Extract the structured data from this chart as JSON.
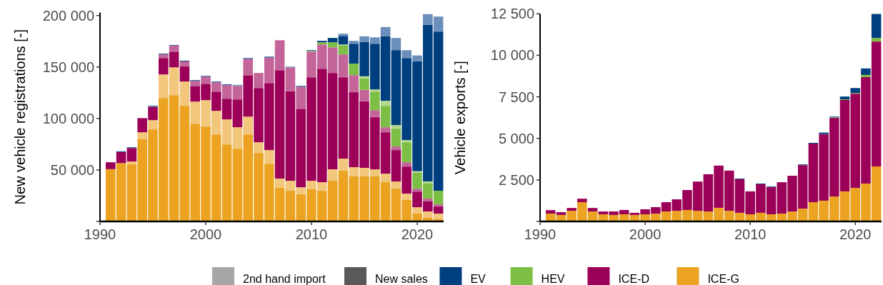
{
  "chart_data": [
    {
      "type": "bar",
      "stacked": true,
      "ylabel": "New vehicle registrations [-]",
      "legend": "bottom",
      "annotations": [
        "2nd hand import",
        "New sales"
      ],
      "x": [
        1991,
        1992,
        1993,
        1994,
        1995,
        1996,
        1997,
        1998,
        1999,
        2000,
        2001,
        2002,
        2003,
        2004,
        2005,
        2006,
        2007,
        2008,
        2009,
        2010,
        2011,
        2012,
        2013,
        2014,
        2015,
        2016,
        2017,
        2018,
        2019,
        2020,
        2021,
        2022
      ],
      "xlim": [
        1990,
        2022.5
      ],
      "xticks": [
        1990,
        2000,
        2010,
        2020
      ],
      "ylim": [
        0,
        203000
      ],
      "yticks": [
        {
          "value": 0,
          "label": null
        },
        {
          "value": 50000,
          "label": "50 000"
        },
        {
          "value": 100000,
          "label": "100 000"
        },
        {
          "value": 150000,
          "label": "150 000"
        },
        {
          "value": 200000,
          "label": "200 000"
        }
      ],
      "series": [
        {
          "name": "ICE-G",
          "color": "#eba321",
          "values": [
            50800,
            56600,
            55400,
            80200,
            89400,
            119900,
            122700,
            112300,
            94900,
            92200,
            84500,
            74800,
            70700,
            84500,
            66500,
            56100,
            32600,
            29800,
            26300,
            31200,
            29800,
            39500,
            49200,
            43700,
            43700,
            43700,
            38100,
            31900,
            20800,
            7600,
            3500,
            2100
          ]
        },
        {
          "color": "#f2c77c",
          "values": [
            0,
            0,
            2800,
            6400,
            9000,
            22900,
            27000,
            23600,
            21500,
            25600,
            22900,
            24300,
            20800,
            17300,
            10400,
            13200,
            9000,
            9700,
            6900,
            8300,
            8300,
            11100,
            11800,
            9000,
            8300,
            6900,
            8300,
            6900,
            6200,
            6200,
            6200,
            5500
          ]
        },
        {
          "name": "ICE-D",
          "color": "#9c0058",
          "values": [
            6700,
            10800,
            13100,
            13300,
            12700,
            15900,
            15200,
            14600,
            15200,
            15900,
            18700,
            20100,
            27000,
            40200,
            52700,
            65100,
            105300,
            86900,
            76200,
            100500,
            110200,
            93600,
            79000,
            72800,
            64700,
            50600,
            40200,
            30500,
            26300,
            15200,
            9700,
            6900
          ]
        },
        {
          "color": "#c4659a",
          "values": [
            0,
            0,
            0,
            700,
            500,
            3500,
            6000,
            4900,
            4900,
            6900,
            9000,
            13200,
            13200,
            15900,
            14600,
            24900,
            29100,
            23100,
            21500,
            24900,
            23600,
            24900,
            22200,
            16600,
            11100,
            6900,
            4900,
            3500,
            4200,
            2800,
            2800,
            2100
          ]
        },
        {
          "name": "HEV",
          "color": "#7dbf45",
          "values": [
            0,
            0,
            0,
            0,
            0,
            0,
            0,
            0,
            0,
            0,
            0,
            0,
            0,
            0,
            0,
            0,
            0,
            0,
            0,
            700,
            2100,
            4900,
            9000,
            11100,
            11100,
            18000,
            20800,
            17300,
            19400,
            15700,
            14600,
            13200
          ]
        },
        {
          "color": "#b3d98f",
          "values": [
            0,
            0,
            0,
            0,
            0,
            0,
            0,
            0,
            0,
            0,
            0,
            0,
            0,
            0,
            0,
            0,
            0,
            0,
            0,
            0,
            0,
            0,
            700,
            0,
            2100,
            2100,
            4900,
            3500,
            2100,
            1400,
            2100,
            0
          ]
        },
        {
          "name": "EV",
          "color": "#003f7f",
          "values": [
            0,
            700,
            700,
            0,
            700,
            700,
            500,
            700,
            700,
            700,
            700,
            700,
            0,
            700,
            0,
            700,
            0,
            0,
            700,
            700,
            1400,
            4200,
            8300,
            19400,
            33300,
            44400,
            62600,
            72800,
            79700,
            106800,
            152000,
            154600
          ]
        },
        {
          "color": "#6a8fba",
          "values": [
            0,
            0,
            0,
            0,
            0,
            0,
            0,
            0,
            0,
            0,
            0,
            0,
            900,
            0,
            0,
            0,
            0,
            900,
            0,
            0,
            0,
            0,
            2100,
            2800,
            5500,
            6200,
            9000,
            11800,
            7600,
            5500,
            10400,
            14600
          ]
        }
      ]
    },
    {
      "type": "bar",
      "stacked": true,
      "ylabel": "Vehicle exports [-]",
      "x": [
        1991,
        1992,
        1993,
        1994,
        1995,
        1996,
        1997,
        1998,
        1999,
        2000,
        2001,
        2002,
        2003,
        2004,
        2005,
        2006,
        2007,
        2008,
        2009,
        2010,
        2011,
        2012,
        2013,
        2014,
        2015,
        2016,
        2017,
        2018,
        2019,
        2020,
        2021,
        2022
      ],
      "xlim": [
        1990,
        2022.5
      ],
      "xticks": [
        1990,
        2000,
        2010,
        2020
      ],
      "ylim": [
        0,
        12500
      ],
      "yticks": [
        {
          "value": 0,
          "label": null
        },
        {
          "value": 2500,
          "label": "2 500"
        },
        {
          "value": 5000,
          "label": "5 000"
        },
        {
          "value": 7500,
          "label": "7 500"
        },
        {
          "value": 10000,
          "label": "10 000"
        },
        {
          "value": 12500,
          "label": "12 500"
        }
      ],
      "series": [
        {
          "color": "#eba321",
          "values": [
            470,
            390,
            640,
            1160,
            600,
            430,
            390,
            430,
            390,
            430,
            470,
            600,
            640,
            690,
            640,
            600,
            820,
            640,
            520,
            430,
            520,
            430,
            470,
            600,
            770,
            1160,
            1250,
            1500,
            1810,
            2020,
            2280,
            3310
          ]
        },
        {
          "color": "#9c0058",
          "values": [
            210,
            170,
            170,
            210,
            210,
            170,
            210,
            260,
            130,
            300,
            390,
            560,
            690,
            1200,
            1760,
            2240,
            2540,
            2420,
            2020,
            1380,
            1720,
            1630,
            1890,
            2150,
            2620,
            3530,
            4010,
            4730,
            5500,
            5670,
            6410,
            7520
          ]
        },
        {
          "color": "#7dbf45",
          "values": [
            0,
            0,
            0,
            0,
            0,
            0,
            0,
            0,
            0,
            0,
            0,
            0,
            0,
            0,
            0,
            0,
            0,
            0,
            0,
            0,
            0,
            0,
            0,
            0,
            0,
            0,
            0,
            40,
            40,
            40,
            130,
            210
          ]
        },
        {
          "color": "#003f7f",
          "values": [
            0,
            0,
            0,
            0,
            0,
            0,
            0,
            0,
            0,
            0,
            0,
            0,
            0,
            0,
            0,
            0,
            0,
            0,
            40,
            0,
            40,
            40,
            0,
            0,
            40,
            40,
            90,
            40,
            170,
            300,
            390,
            1450
          ]
        }
      ]
    }
  ]
}
